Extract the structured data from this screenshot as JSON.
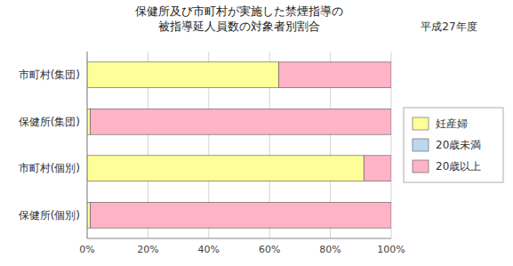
{
  "chart_data": {
    "type": "bar",
    "orientation": "horizontal",
    "stacked": true,
    "title": "保健所及び市町村が実施した禁煙指導の\n被指導延人員数の対象者別割合",
    "subtitle": "平成27年度",
    "categories": [
      "市町村(集団)",
      "保健所(集団)",
      "市町村(個別)",
      "保健所(個別)"
    ],
    "series": [
      {
        "name": "妊産婦",
        "color": "#FFFF99",
        "values": [
          63.0,
          1.0,
          91.0,
          1.0
        ]
      },
      {
        "name": "20歳未満",
        "color": "#BDD7EE",
        "values": [
          0.0,
          0.0,
          0.0,
          0.0
        ]
      },
      {
        "name": "20歳以上",
        "color": "#FFB3C6",
        "values": [
          37.0,
          99.0,
          9.0,
          99.0
        ]
      }
    ],
    "xlim": [
      0,
      100
    ],
    "xticks": [
      {
        "value": 0,
        "label": "0%"
      },
      {
        "value": 20,
        "label": "20%"
      },
      {
        "value": 40,
        "label": "40%"
      },
      {
        "value": 60,
        "label": "60%"
      },
      {
        "value": 80,
        "label": "80%"
      },
      {
        "value": 100,
        "label": "100%"
      }
    ],
    "grid": true,
    "legend": "right"
  }
}
